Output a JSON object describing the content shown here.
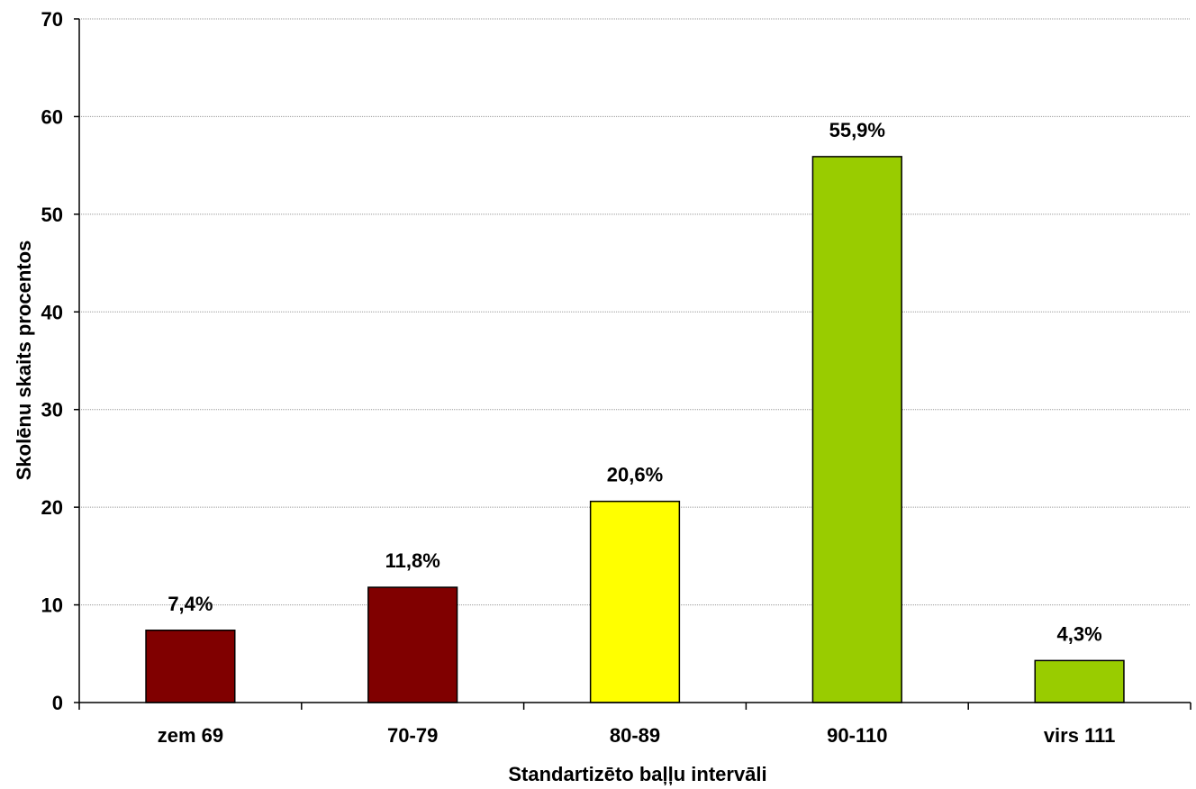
{
  "chart_data": {
    "type": "bar",
    "title": "",
    "xlabel": "Standartizēto baļļu intervāli",
    "ylabel": "Skolēnu skaits procentos",
    "ylim": [
      0,
      70
    ],
    "yticks": [
      0,
      10,
      20,
      30,
      40,
      50,
      60,
      70
    ],
    "grid": true,
    "categories": [
      "zem 69",
      "70-79",
      "80-89",
      "90-110",
      "virs 111"
    ],
    "values": [
      7.4,
      11.8,
      20.6,
      55.9,
      4.3
    ],
    "data_labels": [
      "7,4%",
      "11,8%",
      "20,6%",
      "55,9%",
      "4,3%"
    ],
    "bar_colors": [
      "#800000",
      "#800000",
      "#FFFF00",
      "#99CC00",
      "#99CC00"
    ]
  }
}
